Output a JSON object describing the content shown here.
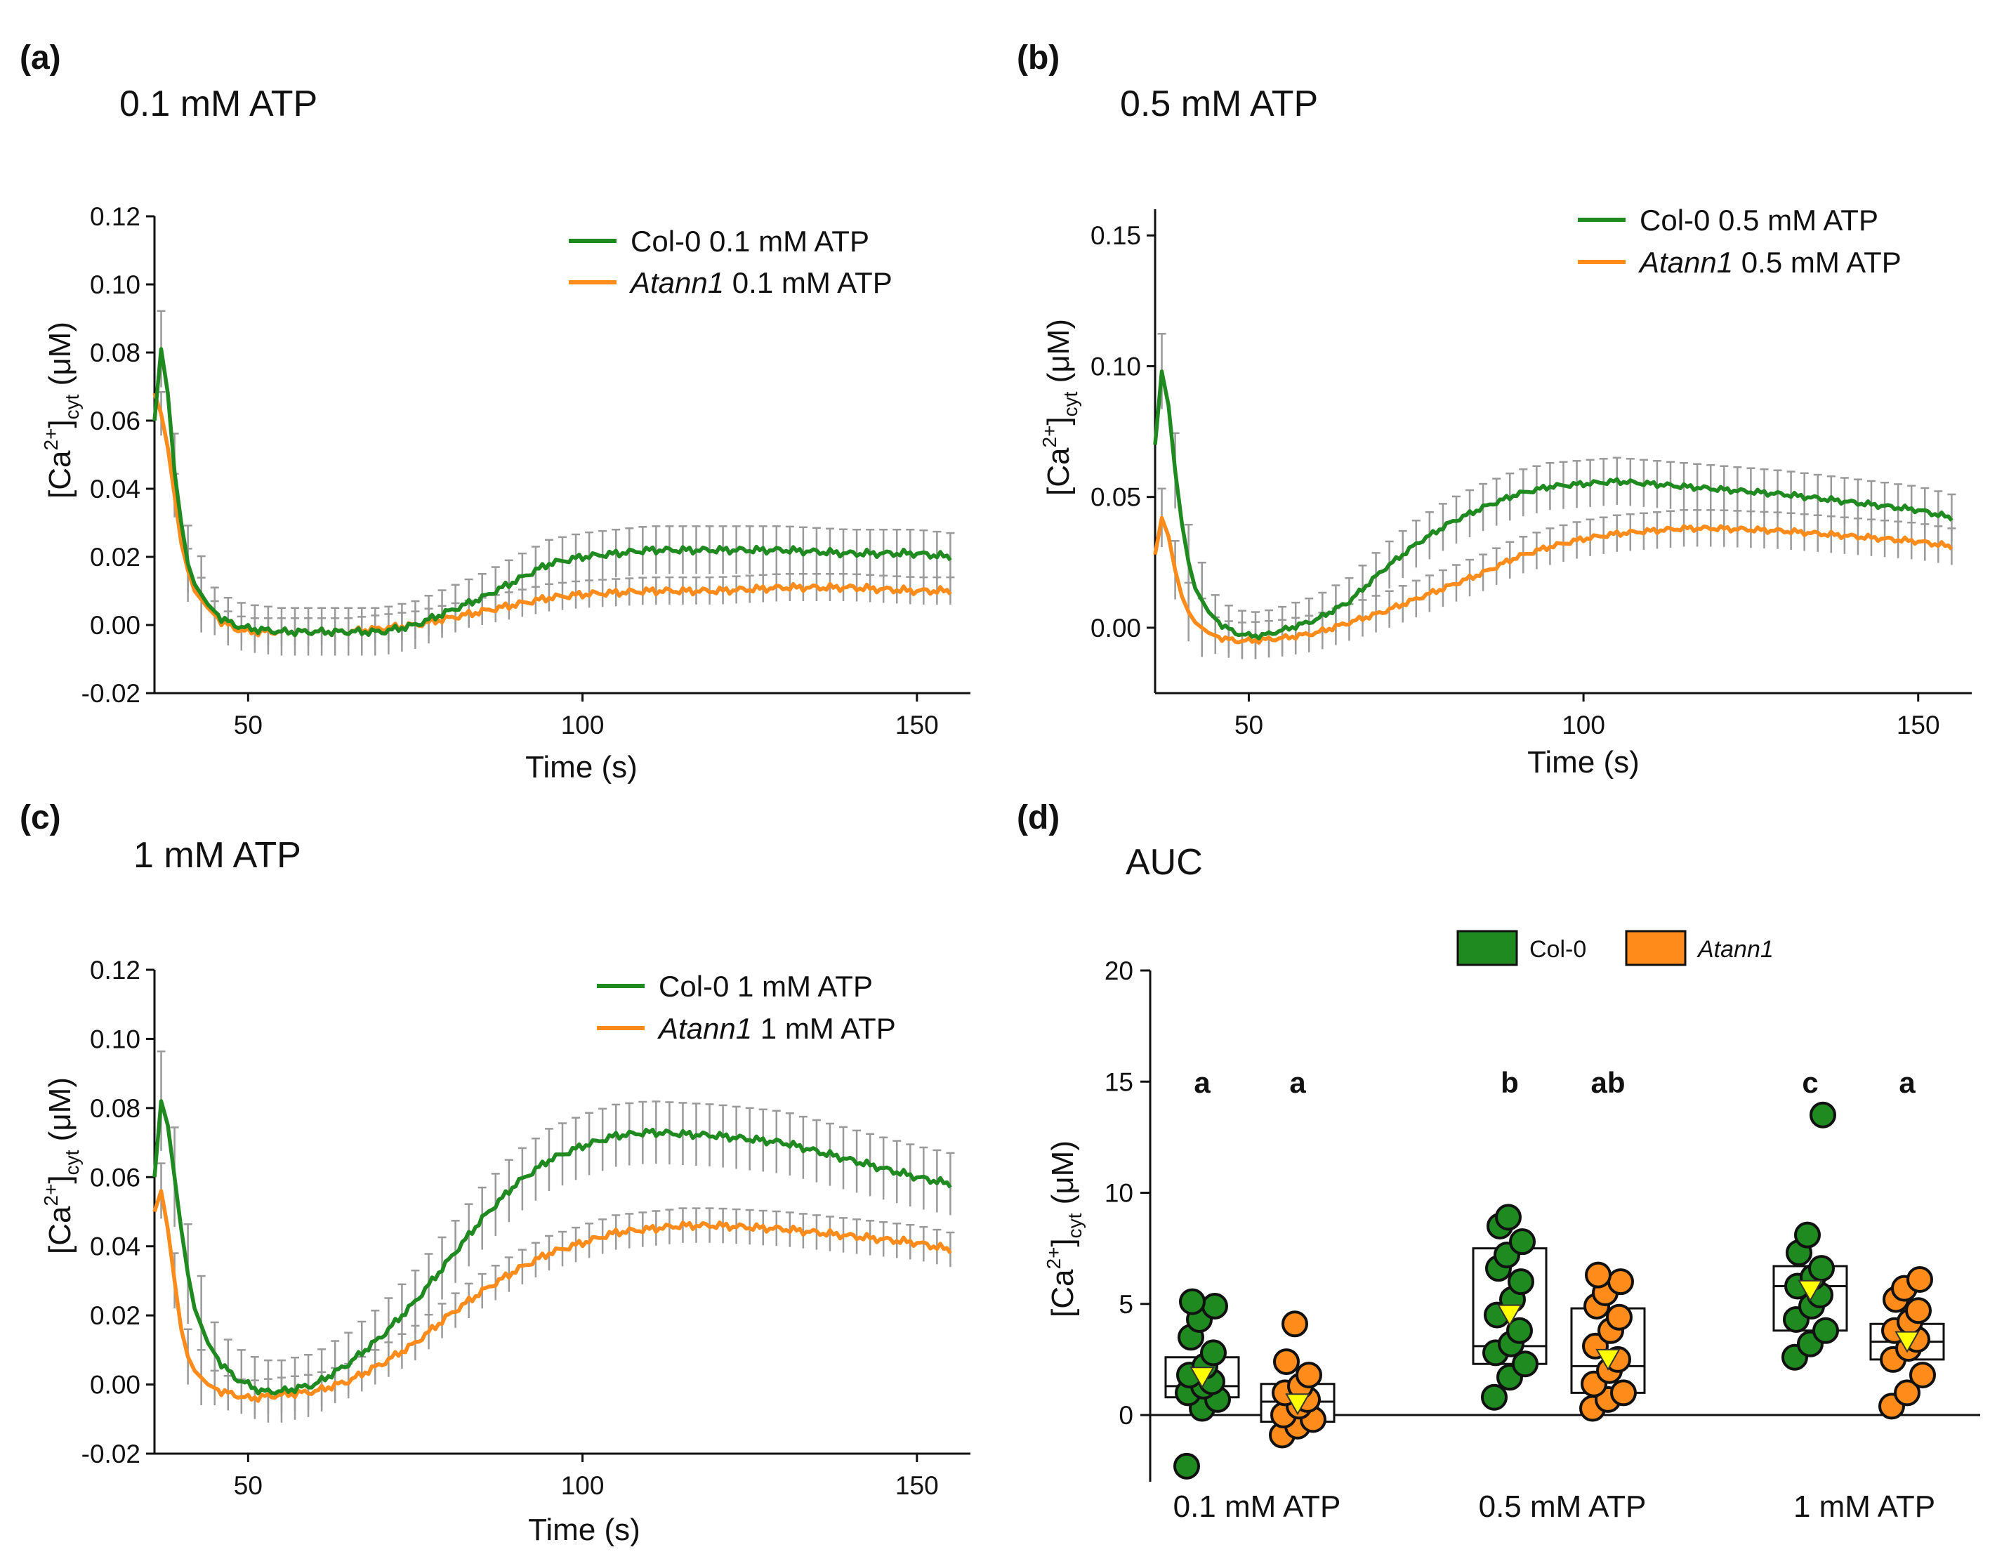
{
  "figure": {
    "panels": [
      {
        "id": "a",
        "label": "(a)",
        "title": "0.1 mM ATP"
      },
      {
        "id": "b",
        "label": "(b)",
        "title": "0.5 mM ATP"
      },
      {
        "id": "c",
        "label": "(c)",
        "title": "1 mM ATP"
      },
      {
        "id": "d",
        "label": "(d)",
        "title": "AUC"
      }
    ]
  },
  "colors": {
    "col0": "#1f8a1f",
    "atann1": "#ff8c1a",
    "error_bar": "#9a9a9a",
    "mean_marker": "#ffff00"
  },
  "chart_data": [
    {
      "type": "line",
      "panel": "a",
      "title": "0.1 mM ATP",
      "xlabel": "Time (s)",
      "ylabel_parts": {
        "main": "[Ca",
        "sup": "2+",
        "close": "]",
        "sub": "cyt",
        "unit": " (μM)"
      },
      "xlim": [
        36,
        158
      ],
      "ylim": [
        -0.02,
        0.12
      ],
      "xticks": [
        50,
        100,
        150
      ],
      "yticks": [
        -0.02,
        0.0,
        0.02,
        0.04,
        0.06,
        0.08,
        0.1,
        0.12
      ],
      "ytick_labels": [
        "-0.02",
        "0.00",
        "0.02",
        "0.04",
        "0.06",
        "0.08",
        "0.10",
        "0.12"
      ],
      "legend": "top-right",
      "series": [
        {
          "name": "Col-0 0.1 mM ATP",
          "name_italic": "",
          "name_rest": "Col-0 0.1 mM ATP",
          "color_key": "col0",
          "points": [
            [
              36,
              0.06
            ],
            [
              37,
              0.081
            ],
            [
              38,
              0.068
            ],
            [
              39,
              0.045
            ],
            [
              40,
              0.03
            ],
            [
              41,
              0.018
            ],
            [
              42,
              0.012
            ],
            [
              44,
              0.006
            ],
            [
              46,
              0.002
            ],
            [
              48,
              0.0
            ],
            [
              50,
              -0.001
            ],
            [
              55,
              -0.002
            ],
            [
              60,
              -0.002
            ],
            [
              65,
              -0.002
            ],
            [
              70,
              -0.002
            ],
            [
              75,
              0.0
            ],
            [
              80,
              0.004
            ],
            [
              85,
              0.008
            ],
            [
              90,
              0.013
            ],
            [
              95,
              0.018
            ],
            [
              100,
              0.02
            ],
            [
              105,
              0.021
            ],
            [
              110,
              0.022
            ],
            [
              120,
              0.022
            ],
            [
              130,
              0.022
            ],
            [
              140,
              0.021
            ],
            [
              150,
              0.021
            ],
            [
              155,
              0.02
            ]
          ],
          "err": 0.007
        },
        {
          "name": "Atann1 0.1 mM ATP",
          "name_italic": "Atann1",
          "name_rest": " 0.1 mM ATP",
          "color_key": "atann1",
          "points": [
            [
              36,
              0.068
            ],
            [
              37,
              0.062
            ],
            [
              38,
              0.052
            ],
            [
              39,
              0.038
            ],
            [
              40,
              0.024
            ],
            [
              41,
              0.016
            ],
            [
              42,
              0.01
            ],
            [
              44,
              0.005
            ],
            [
              46,
              0.001
            ],
            [
              48,
              -0.001
            ],
            [
              50,
              -0.002
            ],
            [
              55,
              -0.002
            ],
            [
              60,
              -0.002
            ],
            [
              65,
              -0.002
            ],
            [
              70,
              -0.001
            ],
            [
              75,
              0.0
            ],
            [
              80,
              0.002
            ],
            [
              85,
              0.004
            ],
            [
              90,
              0.006
            ],
            [
              95,
              0.008
            ],
            [
              100,
              0.009
            ],
            [
              110,
              0.01
            ],
            [
              120,
              0.01
            ],
            [
              130,
              0.011
            ],
            [
              140,
              0.011
            ],
            [
              150,
              0.01
            ],
            [
              155,
              0.01
            ]
          ],
          "err": 0.004
        }
      ]
    },
    {
      "type": "line",
      "panel": "b",
      "title": "0.5 mM ATP",
      "xlabel": "Time (s)",
      "ylabel_parts": {
        "main": "[Ca",
        "sup": "2+",
        "close": "]",
        "sub": "cyt",
        "unit": " (μM)"
      },
      "xlim": [
        36,
        158
      ],
      "ylim": [
        -0.025,
        0.16
      ],
      "xticks": [
        50,
        100,
        150
      ],
      "yticks": [
        0.0,
        0.05,
        0.1,
        0.15
      ],
      "ytick_labels": [
        "0.00",
        "0.05",
        "0.10",
        "0.15"
      ],
      "legend": "top-right",
      "series": [
        {
          "name": "Col-0 0.5 mM ATP",
          "name_italic": "",
          "name_rest": "Col-0 0.5 mM ATP",
          "color_key": "col0",
          "points": [
            [
              36,
              0.07
            ],
            [
              37,
              0.098
            ],
            [
              38,
              0.085
            ],
            [
              39,
              0.06
            ],
            [
              40,
              0.04
            ],
            [
              41,
              0.025
            ],
            [
              42,
              0.015
            ],
            [
              44,
              0.006
            ],
            [
              46,
              0.001
            ],
            [
              48,
              -0.002
            ],
            [
              50,
              -0.003
            ],
            [
              52,
              -0.003
            ],
            [
              55,
              -0.001
            ],
            [
              60,
              0.003
            ],
            [
              65,
              0.01
            ],
            [
              70,
              0.022
            ],
            [
              75,
              0.032
            ],
            [
              80,
              0.04
            ],
            [
              85,
              0.046
            ],
            [
              90,
              0.051
            ],
            [
              95,
              0.054
            ],
            [
              100,
              0.055
            ],
            [
              105,
              0.056
            ],
            [
              110,
              0.055
            ],
            [
              120,
              0.053
            ],
            [
              130,
              0.051
            ],
            [
              140,
              0.048
            ],
            [
              150,
              0.045
            ],
            [
              155,
              0.042
            ]
          ],
          "err": 0.009
        },
        {
          "name": "Atann1 0.5 mM ATP",
          "name_italic": "Atann1",
          "name_rest": " 0.5 mM ATP",
          "color_key": "atann1",
          "points": [
            [
              36,
              0.028
            ],
            [
              37,
              0.042
            ],
            [
              38,
              0.035
            ],
            [
              39,
              0.022
            ],
            [
              40,
              0.012
            ],
            [
              41,
              0.006
            ],
            [
              42,
              0.002
            ],
            [
              44,
              -0.002
            ],
            [
              46,
              -0.004
            ],
            [
              48,
              -0.005
            ],
            [
              50,
              -0.005
            ],
            [
              55,
              -0.004
            ],
            [
              60,
              -0.002
            ],
            [
              65,
              0.002
            ],
            [
              70,
              0.006
            ],
            [
              75,
              0.011
            ],
            [
              80,
              0.016
            ],
            [
              85,
              0.021
            ],
            [
              90,
              0.027
            ],
            [
              95,
              0.031
            ],
            [
              100,
              0.034
            ],
            [
              105,
              0.036
            ],
            [
              110,
              0.037
            ],
            [
              115,
              0.038
            ],
            [
              120,
              0.038
            ],
            [
              130,
              0.037
            ],
            [
              140,
              0.035
            ],
            [
              150,
              0.033
            ],
            [
              155,
              0.031
            ]
          ],
          "err": 0.007
        }
      ]
    },
    {
      "type": "line",
      "panel": "c",
      "title": "1 mM ATP",
      "xlabel": "Time (s)",
      "ylabel_parts": {
        "main": "[Ca",
        "sup": "2+",
        "close": "]",
        "sub": "cyt",
        "unit": " (μM)"
      },
      "xlim": [
        36,
        158
      ],
      "ylim": [
        -0.02,
        0.12
      ],
      "xticks": [
        50,
        100,
        150
      ],
      "yticks": [
        -0.02,
        0.0,
        0.02,
        0.04,
        0.06,
        0.08,
        0.1,
        0.12
      ],
      "ytick_labels": [
        "-0.02",
        "0.00",
        "0.02",
        "0.04",
        "0.06",
        "0.08",
        "0.10",
        "0.12"
      ],
      "legend": "top-right",
      "series": [
        {
          "name": "Col-0 1 mM ATP",
          "name_italic": "",
          "name_rest": "Col-0 1 mM ATP",
          "color_key": "col0",
          "points": [
            [
              36,
              0.06
            ],
            [
              37,
              0.082
            ],
            [
              38,
              0.075
            ],
            [
              39,
              0.06
            ],
            [
              40,
              0.045
            ],
            [
              41,
              0.032
            ],
            [
              42,
              0.022
            ],
            [
              44,
              0.012
            ],
            [
              46,
              0.006
            ],
            [
              48,
              0.002
            ],
            [
              50,
              0.0
            ],
            [
              52,
              -0.002
            ],
            [
              55,
              -0.002
            ],
            [
              60,
              0.0
            ],
            [
              65,
              0.006
            ],
            [
              70,
              0.014
            ],
            [
              75,
              0.024
            ],
            [
              80,
              0.036
            ],
            [
              85,
              0.048
            ],
            [
              90,
              0.058
            ],
            [
              95,
              0.065
            ],
            [
              100,
              0.069
            ],
            [
              105,
              0.072
            ],
            [
              110,
              0.073
            ],
            [
              120,
              0.072
            ],
            [
              130,
              0.07
            ],
            [
              140,
              0.065
            ],
            [
              150,
              0.06
            ],
            [
              155,
              0.058
            ]
          ],
          "err": 0.009
        },
        {
          "name": "Atann1 1 mM ATP",
          "name_italic": "Atann1",
          "name_rest": " 1 mM ATP",
          "color_key": "atann1",
          "points": [
            [
              36,
              0.05
            ],
            [
              37,
              0.056
            ],
            [
              38,
              0.045
            ],
            [
              39,
              0.03
            ],
            [
              40,
              0.016
            ],
            [
              41,
              0.008
            ],
            [
              42,
              0.004
            ],
            [
              44,
              0.0
            ],
            [
              46,
              -0.002
            ],
            [
              48,
              -0.003
            ],
            [
              50,
              -0.004
            ],
            [
              55,
              -0.003
            ],
            [
              60,
              -0.002
            ],
            [
              65,
              0.001
            ],
            [
              70,
              0.006
            ],
            [
              75,
              0.012
            ],
            [
              80,
              0.02
            ],
            [
              85,
              0.027
            ],
            [
              90,
              0.033
            ],
            [
              95,
              0.038
            ],
            [
              100,
              0.041
            ],
            [
              105,
              0.044
            ],
            [
              110,
              0.045
            ],
            [
              115,
              0.046
            ],
            [
              120,
              0.046
            ],
            [
              130,
              0.045
            ],
            [
              140,
              0.043
            ],
            [
              150,
              0.041
            ],
            [
              155,
              0.039
            ]
          ],
          "err": 0.005
        }
      ]
    },
    {
      "type": "box",
      "panel": "d",
      "title": "AUC",
      "ylabel_parts": {
        "main": "[Ca",
        "sup": "2+",
        "close": "]",
        "sub": "cyt",
        "unit": " (μM)"
      },
      "ylim": [
        -3,
        20
      ],
      "yticks": [
        0,
        5,
        10,
        15,
        20
      ],
      "ytick_labels": [
        "0",
        "5",
        "10",
        "15",
        "20"
      ],
      "categories": [
        "0.1 mM ATP",
        "0.5 mM ATP",
        "1 mM ATP"
      ],
      "legend": [
        {
          "label": "Col-0",
          "italic": false,
          "color_key": "col0"
        },
        {
          "label": "Atann1",
          "italic": true,
          "color_key": "atann1"
        }
      ],
      "groups": [
        {
          "category": "0.1 mM ATP",
          "genotype": "Col-0",
          "color_key": "col0",
          "q1": 0.8,
          "median": 1.3,
          "q3": 2.6,
          "mean": 1.7,
          "letter": "a",
          "points": [
            -2.3,
            0.3,
            0.7,
            1.0,
            1.3,
            1.5,
            1.8,
            2.2,
            2.8,
            3.5,
            4.3,
            4.9,
            5.1
          ]
        },
        {
          "category": "0.1 mM ATP",
          "genotype": "Atann1",
          "color_key": "atann1",
          "q1": -0.3,
          "median": 0.6,
          "q3": 1.4,
          "mean": 0.5,
          "letter": "a",
          "points": [
            -0.9,
            -0.5,
            -0.2,
            0.0,
            0.4,
            0.7,
            1.0,
            1.3,
            1.8,
            2.4,
            4.1
          ]
        },
        {
          "category": "0.5 mM ATP",
          "genotype": "Col-0",
          "color_key": "col0",
          "q1": 2.3,
          "median": 3.1,
          "q3": 7.5,
          "mean": 4.5,
          "letter": "b",
          "points": [
            0.8,
            1.7,
            2.3,
            2.8,
            3.2,
            3.8,
            4.5,
            5.2,
            6.0,
            6.6,
            7.2,
            7.8,
            8.5,
            8.9
          ]
        },
        {
          "category": "0.5 mM ATP",
          "genotype": "Atann1",
          "color_key": "atann1",
          "q1": 1.0,
          "median": 2.2,
          "q3": 4.8,
          "mean": 2.5,
          "letter": "ab",
          "points": [
            0.3,
            0.7,
            1.0,
            1.4,
            2.0,
            2.5,
            3.1,
            3.8,
            4.4,
            4.9,
            5.5,
            6.0,
            6.3
          ]
        },
        {
          "category": "1 mM ATP",
          "genotype": "Col-0",
          "color_key": "col0",
          "q1": 3.8,
          "median": 5.8,
          "q3": 6.7,
          "mean": 5.6,
          "letter": "c",
          "points": [
            2.6,
            3.2,
            3.8,
            4.3,
            4.9,
            5.4,
            5.8,
            6.2,
            6.6,
            7.3,
            8.1,
            13.5
          ]
        },
        {
          "category": "1 mM ATP",
          "genotype": "Atann1",
          "color_key": "atann1",
          "q1": 2.5,
          "median": 3.3,
          "q3": 4.1,
          "mean": 3.3,
          "letter": "a",
          "points": [
            0.4,
            1.0,
            1.8,
            2.5,
            3.0,
            3.4,
            3.8,
            4.2,
            4.7,
            5.2,
            5.7,
            6.1
          ]
        }
      ]
    }
  ]
}
